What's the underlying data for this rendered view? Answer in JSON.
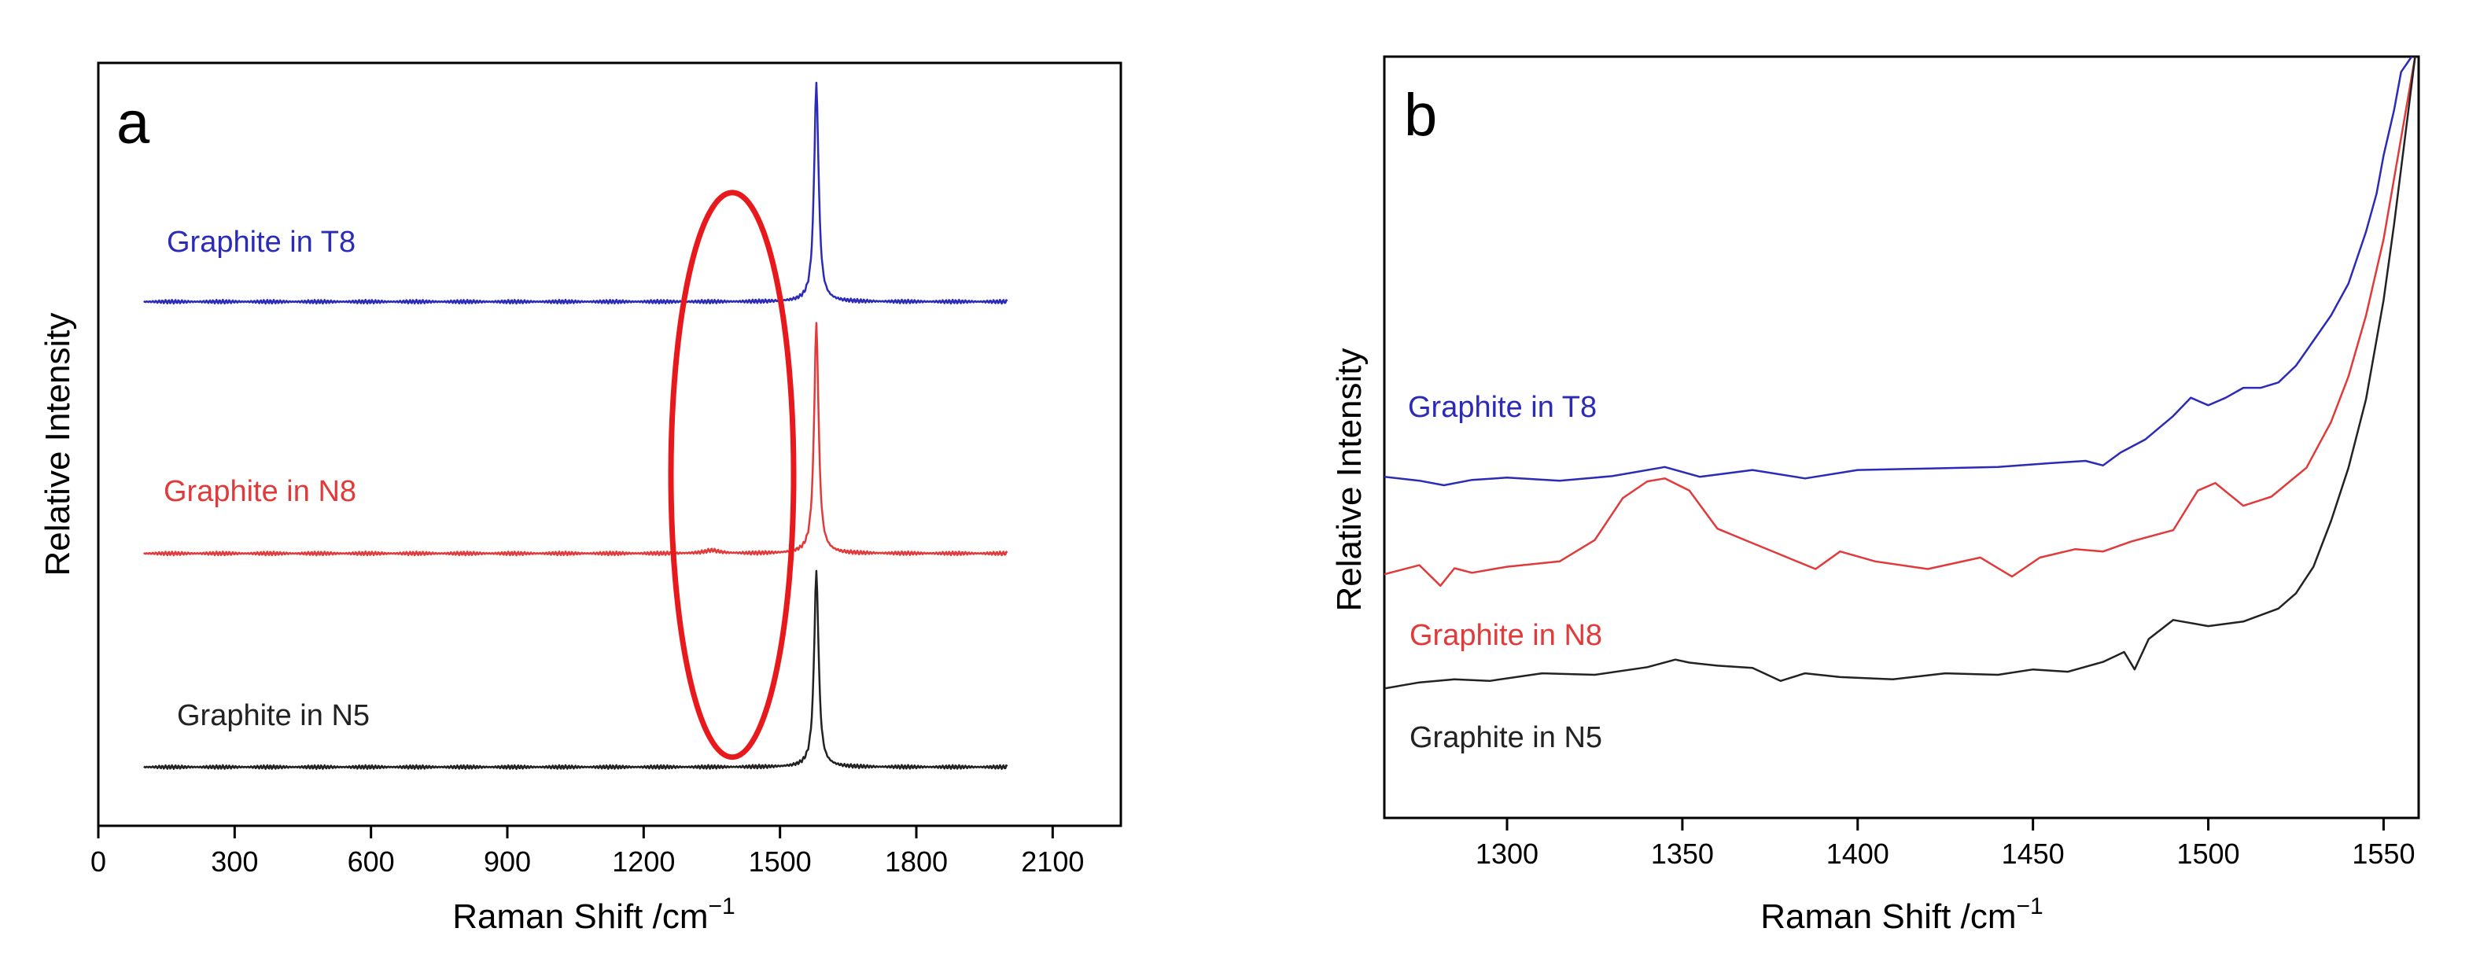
{
  "chart_data": [
    {
      "type": "line",
      "panel_label": "a",
      "xlabel": "Raman Shift /cm",
      "xlabel_sup": "−1",
      "ylabel": "Relative Intensity",
      "xlim": [
        0,
        2250
      ],
      "ylim": [
        0,
        1
      ],
      "x_ticks": [
        0,
        300,
        600,
        900,
        1200,
        1500,
        1800,
        2100
      ],
      "y_ticks_labeled": false,
      "series": [
        {
          "name": "Graphite in T8",
          "color": "#2b2bb8",
          "baseline": 0.687,
          "x_start": 100,
          "x_end": 2000,
          "peak_x": 1580,
          "peak_height": 0.285,
          "peak_width": 6,
          "d_band_height": 0.0
        },
        {
          "name": "Graphite in N8",
          "color": "#e03a3a",
          "baseline": 0.357,
          "x_start": 100,
          "x_end": 2000,
          "peak_x": 1580,
          "peak_height": 0.3,
          "peak_width": 6,
          "d_band_height": 0.004
        },
        {
          "name": "Graphite in N5",
          "color": "#222222",
          "baseline": 0.077,
          "x_start": 100,
          "x_end": 2000,
          "peak_x": 1580,
          "peak_height": 0.255,
          "peak_width": 6,
          "d_band_height": 0.0
        }
      ],
      "annotations": [
        {
          "type": "ellipse",
          "color": "#e8191c",
          "center_x": 1395,
          "center_y": 0.46,
          "radius_x": 135,
          "radius_y": 0.74
        }
      ]
    },
    {
      "type": "line",
      "panel_label": "b",
      "xlabel": "Raman Shift /cm",
      "xlabel_sup": "−1",
      "ylabel": "Relative Intensity",
      "xlim": [
        1265,
        1560
      ],
      "ylim": [
        0,
        1
      ],
      "x_ticks": [
        1300,
        1350,
        1400,
        1450,
        1500,
        1550
      ],
      "y_ticks_labeled": false,
      "series": [
        {
          "name": "Graphite in T8",
          "color": "#2b2bb8",
          "x": [
            1265,
            1275,
            1282,
            1290,
            1300,
            1315,
            1330,
            1345,
            1355,
            1370,
            1385,
            1400,
            1420,
            1440,
            1455,
            1465,
            1470,
            1475,
            1482,
            1490,
            1495,
            1500,
            1505,
            1510,
            1515,
            1520,
            1525,
            1530,
            1535,
            1540,
            1545,
            1548,
            1550,
            1553,
            1555,
            1558
          ],
          "y": [
            0.448,
            0.443,
            0.437,
            0.444,
            0.447,
            0.443,
            0.449,
            0.461,
            0.448,
            0.457,
            0.446,
            0.457,
            0.459,
            0.461,
            0.466,
            0.469,
            0.463,
            0.48,
            0.497,
            0.528,
            0.552,
            0.542,
            0.552,
            0.565,
            0.565,
            0.572,
            0.594,
            0.627,
            0.66,
            0.702,
            0.77,
            0.82,
            0.87,
            0.93,
            0.98,
            1.0
          ]
        },
        {
          "name": "Graphite in N8",
          "color": "#e03a3a",
          "x": [
            1265,
            1275,
            1281,
            1285,
            1290,
            1300,
            1315,
            1325,
            1333,
            1340,
            1345,
            1352,
            1360,
            1370,
            1380,
            1388,
            1395,
            1405,
            1420,
            1435,
            1444,
            1452,
            1462,
            1470,
            1478,
            1490,
            1497,
            1502,
            1510,
            1518,
            1528,
            1535,
            1540,
            1545,
            1550,
            1553,
            1556,
            1559
          ],
          "y": [
            0.32,
            0.332,
            0.305,
            0.328,
            0.322,
            0.33,
            0.337,
            0.365,
            0.42,
            0.442,
            0.446,
            0.43,
            0.38,
            0.361,
            0.342,
            0.327,
            0.35,
            0.337,
            0.327,
            0.342,
            0.317,
            0.342,
            0.353,
            0.35,
            0.363,
            0.378,
            0.43,
            0.44,
            0.41,
            0.422,
            0.46,
            0.52,
            0.58,
            0.66,
            0.76,
            0.84,
            0.92,
            1.0
          ]
        },
        {
          "name": "Graphite in N5",
          "color": "#222222",
          "x": [
            1265,
            1275,
            1285,
            1295,
            1310,
            1325,
            1340,
            1348,
            1352,
            1360,
            1370,
            1378,
            1385,
            1395,
            1410,
            1425,
            1440,
            1450,
            1460,
            1470,
            1476,
            1479,
            1483,
            1490,
            1500,
            1510,
            1520,
            1525,
            1530,
            1535,
            1540,
            1545,
            1550,
            1553,
            1556,
            1559
          ],
          "y": [
            0.17,
            0.178,
            0.182,
            0.18,
            0.19,
            0.188,
            0.198,
            0.208,
            0.204,
            0.2,
            0.197,
            0.18,
            0.19,
            0.185,
            0.182,
            0.19,
            0.188,
            0.195,
            0.192,
            0.205,
            0.218,
            0.195,
            0.235,
            0.26,
            0.252,
            0.258,
            0.275,
            0.295,
            0.33,
            0.39,
            0.46,
            0.55,
            0.68,
            0.78,
            0.89,
            1.0
          ]
        }
      ]
    }
  ]
}
